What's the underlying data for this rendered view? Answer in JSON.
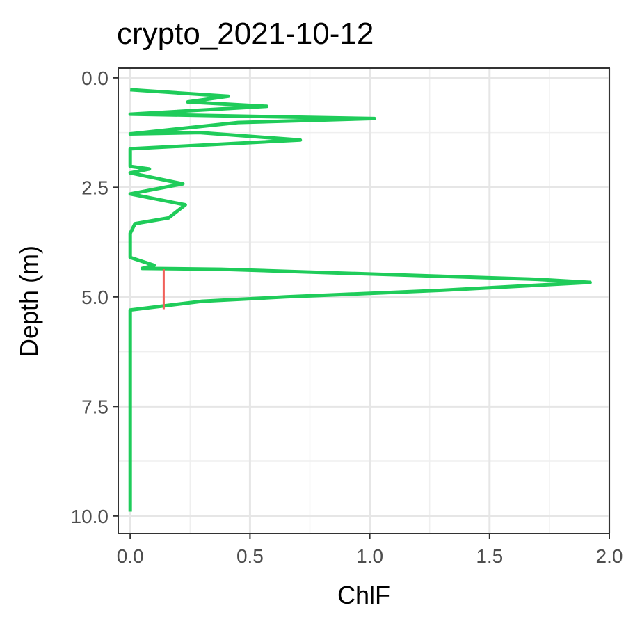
{
  "chart_data": {
    "type": "line",
    "title": "crypto_2021-10-12",
    "xlabel": "ChlF",
    "ylabel": "Depth (m)",
    "xlim": [
      -0.05,
      2.0
    ],
    "ylim": [
      10.4,
      -0.22
    ],
    "y_reversed": true,
    "grid": true,
    "x_ticks": [
      0.0,
      0.5,
      1.0,
      1.5,
      2.0
    ],
    "x_tick_labels": [
      "0.0",
      "0.5",
      "1.0",
      "1.5",
      "2.0"
    ],
    "y_ticks": [
      0.0,
      2.5,
      5.0,
      7.5,
      10.0
    ],
    "y_tick_labels": [
      "0.0",
      "2.5",
      "5.0",
      "7.5",
      "10.0"
    ],
    "series": [
      {
        "color": "#1fcc5a",
        "points": [
          [
            0.0,
            0.27
          ],
          [
            0.41,
            0.42
          ],
          [
            0.24,
            0.55
          ],
          [
            0.57,
            0.65
          ],
          [
            0.0,
            0.83
          ],
          [
            1.02,
            0.93
          ],
          [
            0.45,
            1.02
          ],
          [
            0.0,
            1.28
          ],
          [
            0.29,
            1.25
          ],
          [
            0.71,
            1.42
          ],
          [
            0.0,
            1.62
          ],
          [
            0.0,
            2.02
          ],
          [
            0.08,
            2.08
          ],
          [
            0.0,
            2.17
          ],
          [
            0.22,
            2.42
          ],
          [
            0.0,
            2.65
          ],
          [
            0.23,
            2.9
          ],
          [
            0.16,
            3.2
          ],
          [
            0.02,
            3.33
          ],
          [
            0.0,
            3.55
          ],
          [
            0.0,
            4.1
          ],
          [
            0.1,
            4.28
          ],
          [
            0.05,
            4.35
          ],
          [
            0.38,
            4.37
          ],
          [
            1.7,
            4.6
          ],
          [
            1.92,
            4.67
          ],
          [
            1.3,
            4.85
          ],
          [
            0.65,
            5.0
          ],
          [
            0.3,
            5.1
          ],
          [
            0.0,
            5.3
          ],
          [
            0.0,
            9.9
          ]
        ]
      },
      {
        "color": "#f0605a",
        "points": [
          [
            0.14,
            4.37
          ],
          [
            0.14,
            5.28
          ]
        ]
      }
    ]
  }
}
